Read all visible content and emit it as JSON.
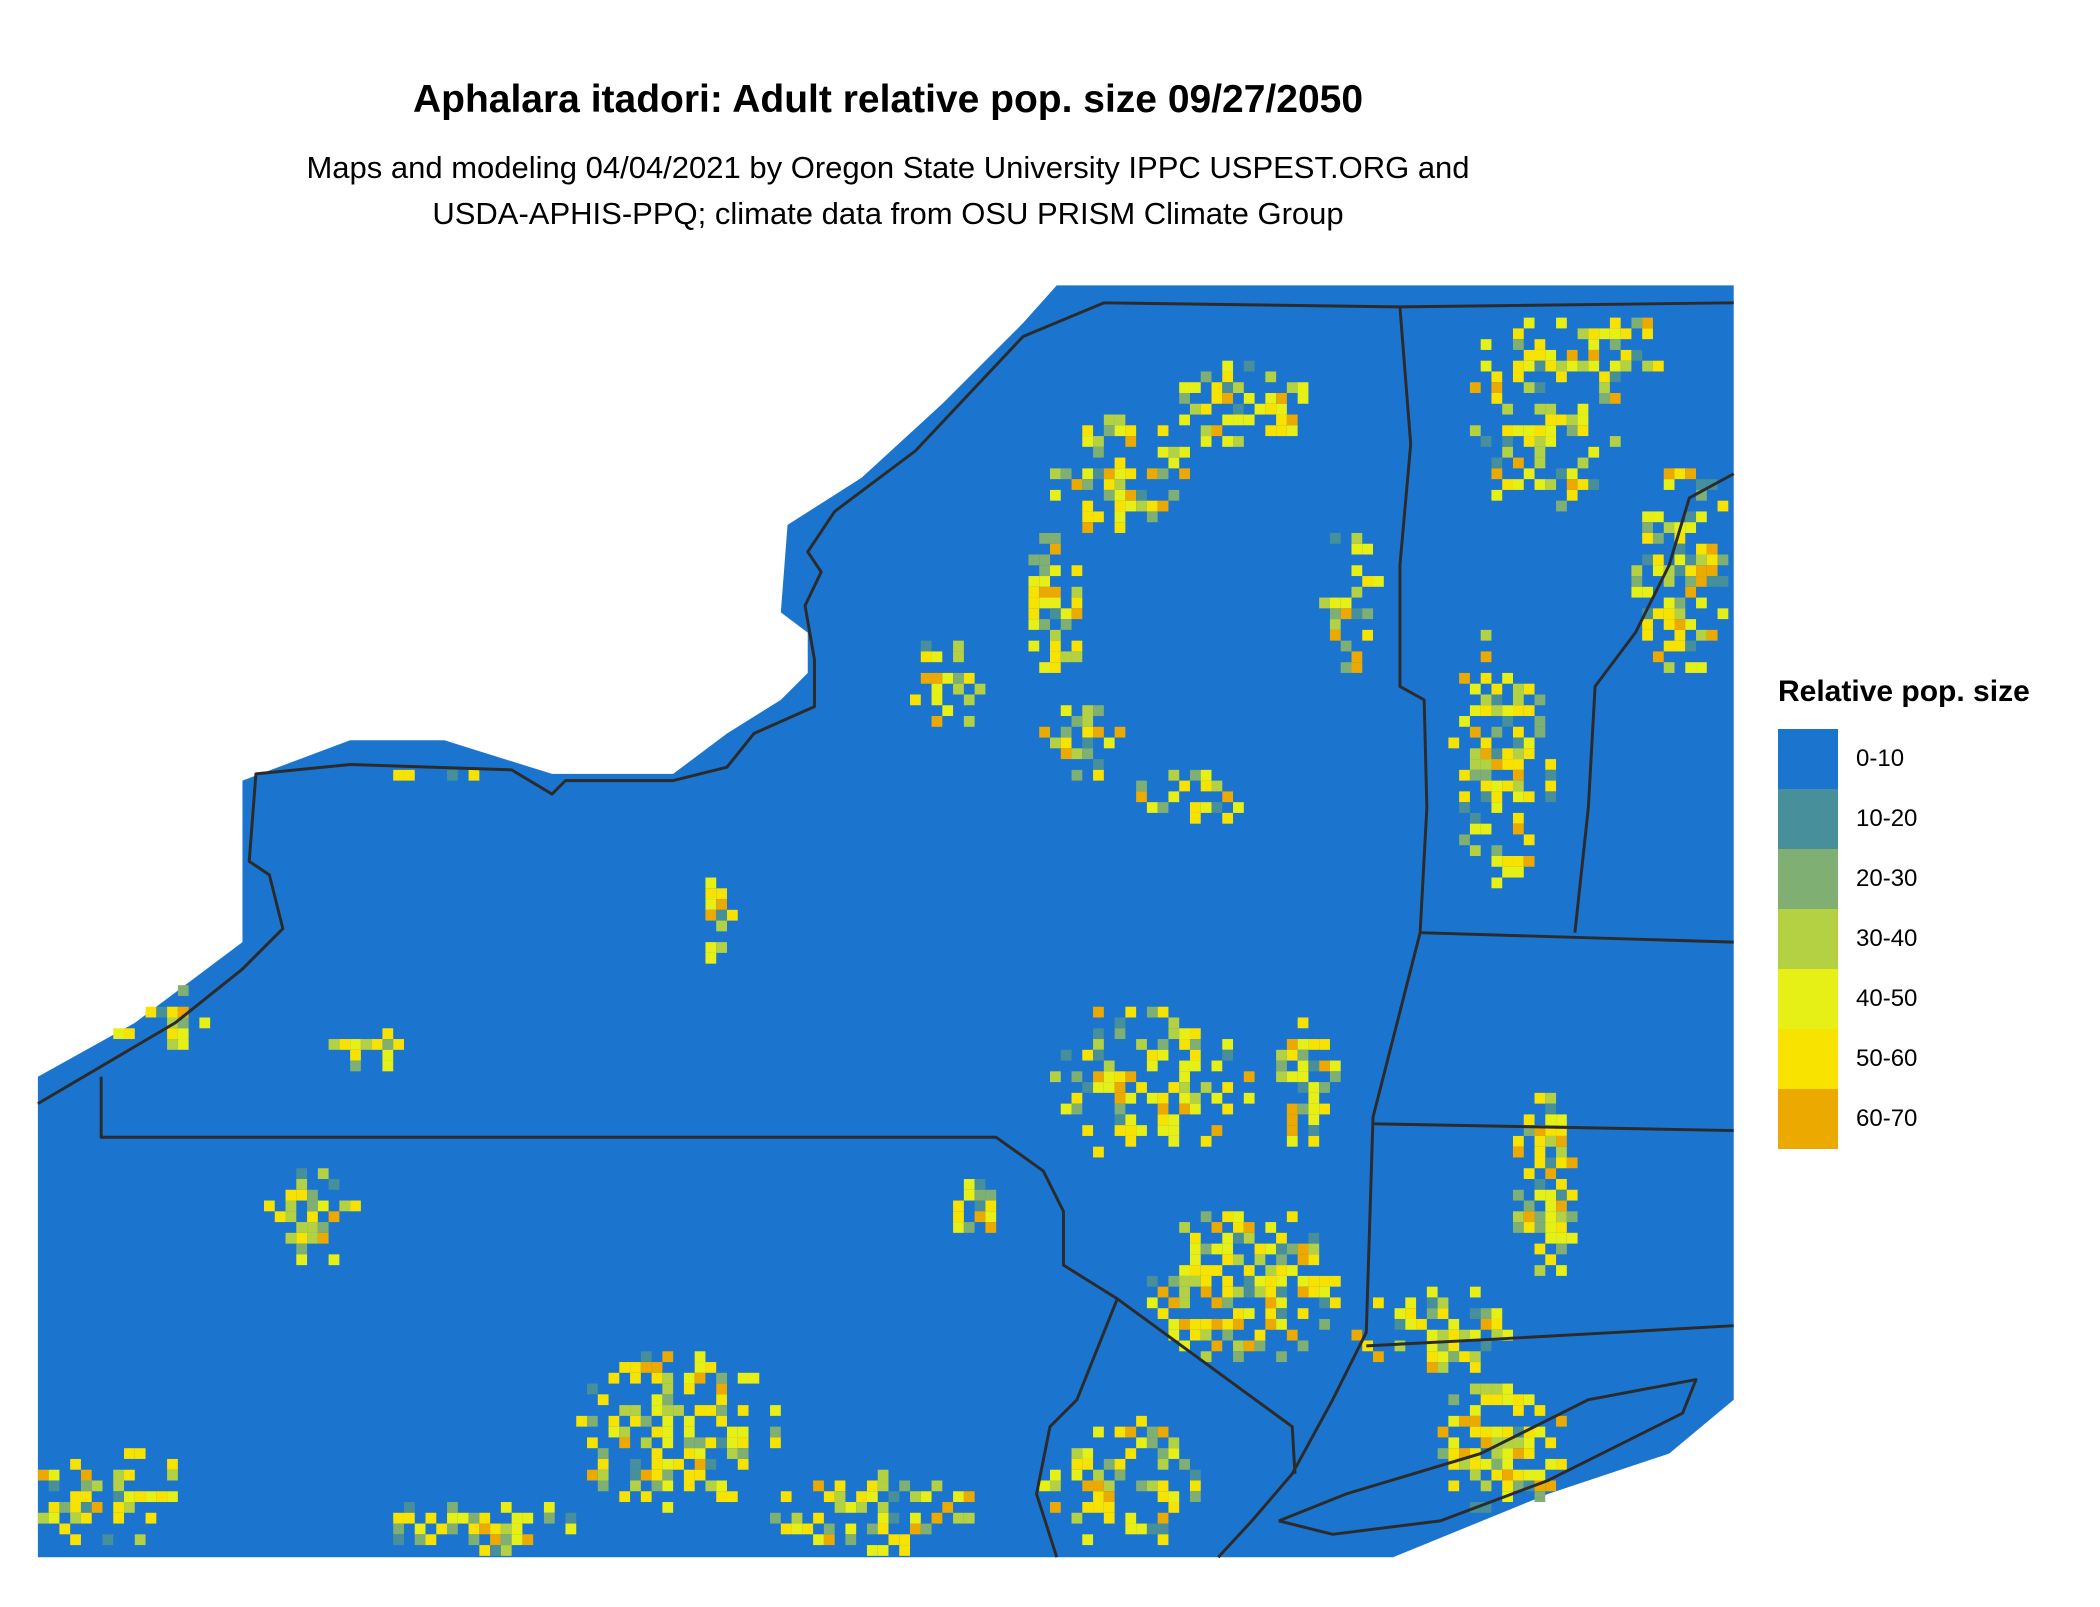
{
  "title": "Aphalara itadori: Adult relative pop. size 09/27/2050",
  "subtitle_line1": "Maps and modeling 04/04/2021 by Oregon State University IPPC USPEST.ORG and",
  "subtitle_line2": "USDA-APHIS-PPQ; climate data from OSU PRISM Climate Group",
  "legend": {
    "title": "Relative pop. size",
    "items": [
      {
        "label": "0-10",
        "color": "#1b75cf"
      },
      {
        "label": "10-20",
        "color": "#478f9a"
      },
      {
        "label": "20-30",
        "color": "#7faf72"
      },
      {
        "label": "30-40",
        "color": "#b3d143"
      },
      {
        "label": "40-50",
        "color": "#e6ef16"
      },
      {
        "label": "50-60",
        "color": "#f8e200"
      },
      {
        "label": "60-70",
        "color": "#eca900"
      }
    ]
  },
  "map": {
    "region": "New York and surrounding states",
    "background_class": "0-10",
    "boundary_color": "#2b2b2b"
  }
}
